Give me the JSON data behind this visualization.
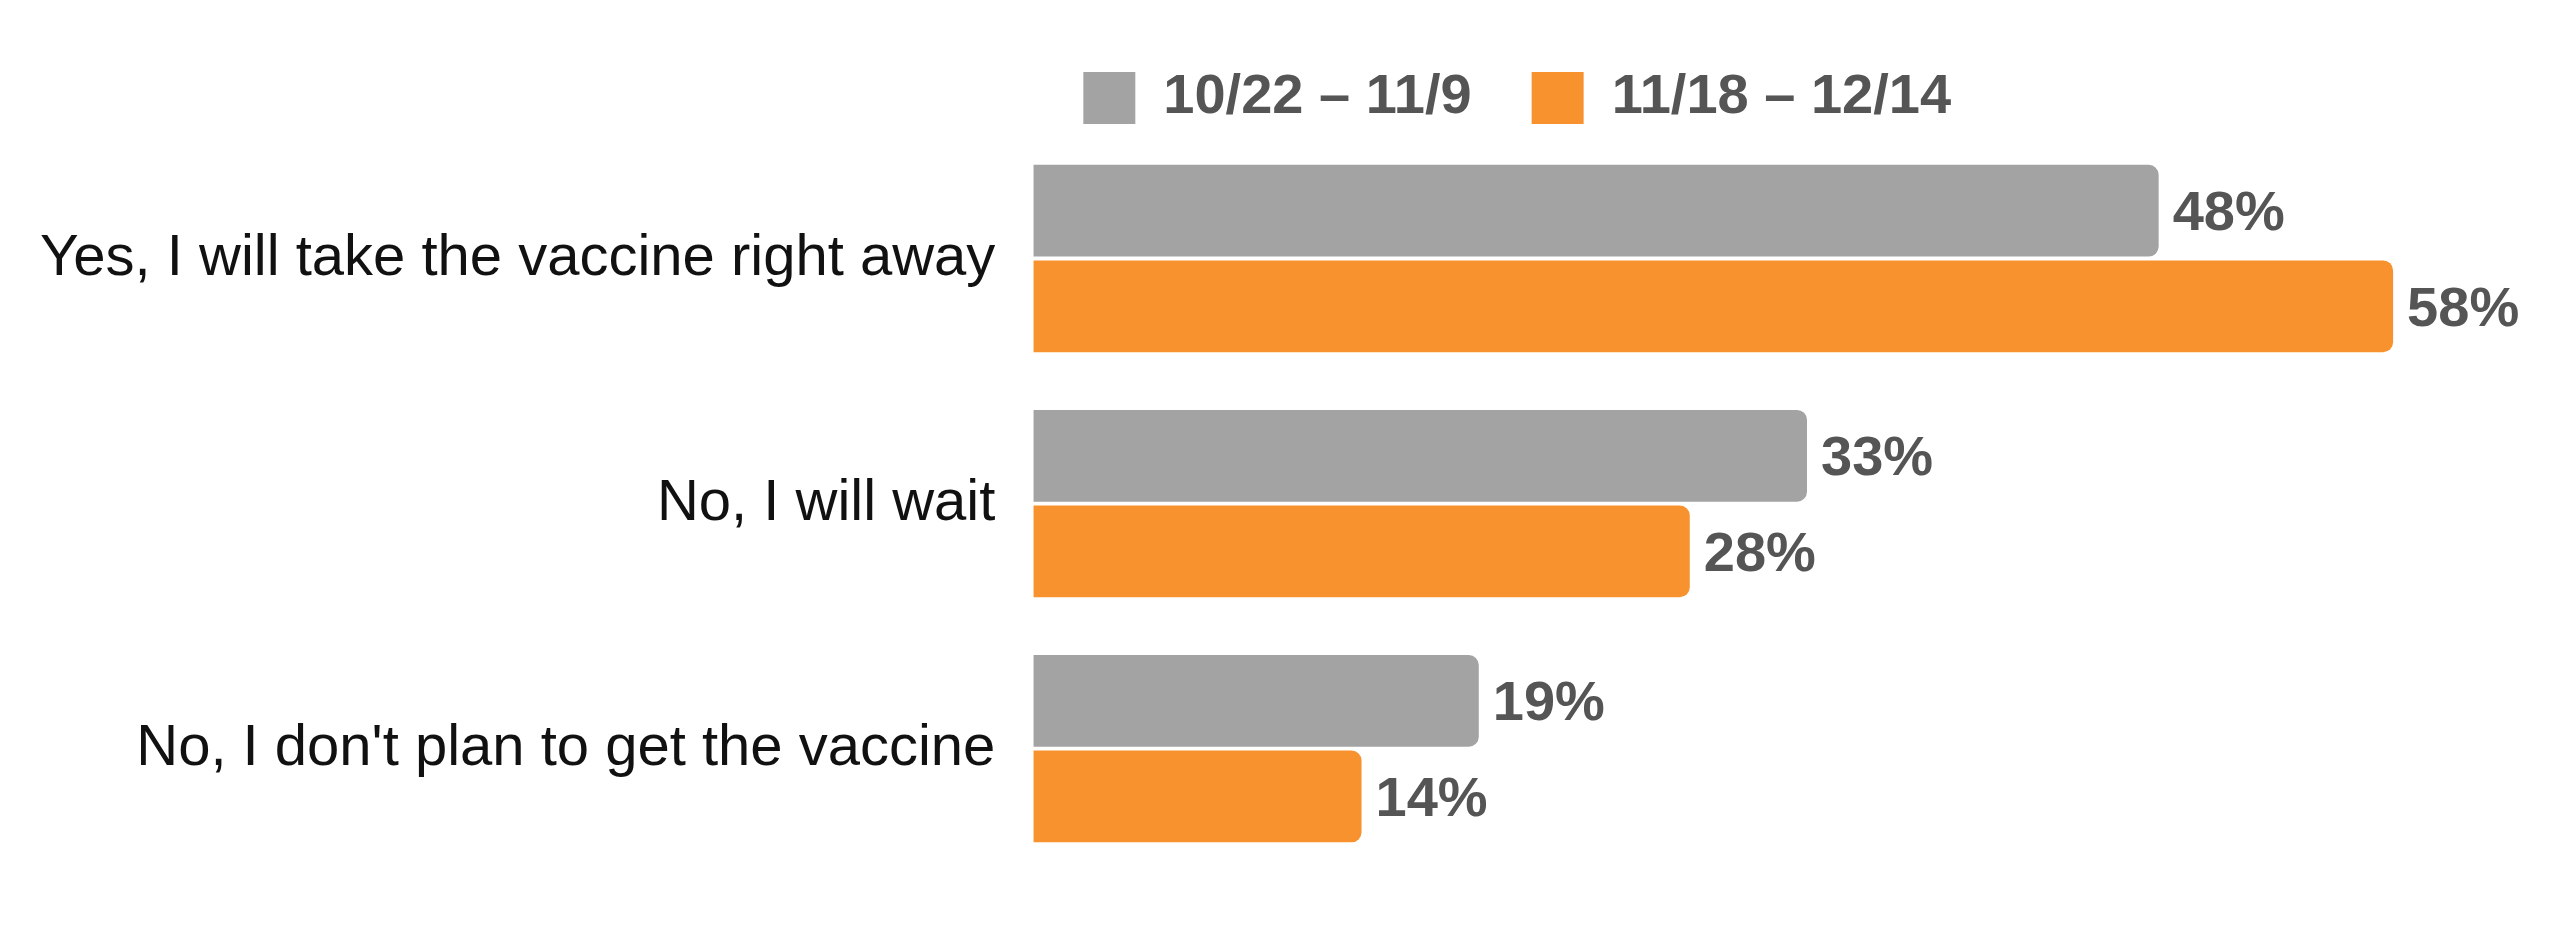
{
  "chart_data": {
    "type": "bar",
    "orientation": "horizontal",
    "categories": [
      "Yes, I will take the vaccine right away",
      "No, I will wait",
      "No, I don't plan to get the vaccine"
    ],
    "series": [
      {
        "name": "10/22 – 11/9",
        "color": "#a3a3a3",
        "values": [
          48,
          33,
          19
        ],
        "value_labels": [
          "48%",
          "33%",
          "19%"
        ]
      },
      {
        "name": "11/18 – 12/14",
        "color": "#f7922e",
        "values": [
          58,
          28,
          14
        ],
        "value_labels": [
          "58%",
          "28%",
          "14%"
        ]
      }
    ],
    "legend": "top",
    "tick_labels": "y",
    "grid": false
  }
}
